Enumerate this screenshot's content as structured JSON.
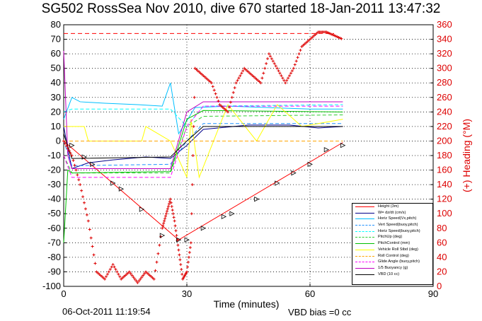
{
  "page": {
    "title": "SG502 RossSea Nov 2010, dive 670 started 18-Jan-2011 13:47:32",
    "date_stamp": "06-Oct-2011 11:19:54",
    "vbd_bias": "VBD bias =0 cc"
  },
  "chart_data": {
    "type": "line",
    "xlabel": "Time (minutes)",
    "ylabel_right": "(+) Heading (°M)",
    "xlim": [
      0,
      90
    ],
    "ylim_left": [
      -100,
      80
    ],
    "ylim_right": [
      0,
      360
    ],
    "x_ticks": [
      "0",
      "30",
      "60",
      "90"
    ],
    "y_ticks_left": [
      "80",
      "70",
      "60",
      "50",
      "40",
      "30",
      "20",
      "10",
      "0",
      "-10",
      "-20",
      "-30",
      "-40",
      "-50",
      "-60",
      "-70",
      "-80",
      "-90",
      "-100"
    ],
    "y_ticks_right": [
      "360",
      "340",
      "320",
      "300",
      "280",
      "260",
      "240",
      "220",
      "200",
      "180",
      "160",
      "140",
      "120",
      "100",
      "80",
      "60",
      "40",
      "20",
      "0"
    ],
    "grid": true,
    "legend_position": "bottom-right",
    "colors": {
      "height": "#ff0000",
      "w": "#00008b",
      "horz_speed": "#00bfff",
      "vert_speed_buoy": "#1e90ff",
      "horz_speed_buoy": "#00ffff",
      "pitch_up": "#32cd32",
      "pitch_control": "#00c000",
      "vehicle_roll": "#ffff00",
      "roll_control": "#ffa500",
      "glide_angle": "#ff00ff",
      "buoyancy": "#c000c0",
      "vbd": "#000000",
      "heading": "#dd0000"
    },
    "series": [
      {
        "name": "Height (3m)",
        "color": "#ff0000",
        "dash": "solid",
        "x": [
          0,
          28,
          68
        ],
        "y": [
          0,
          -68,
          -1
        ]
      },
      {
        "name": "W= dz/dt (cm/s)",
        "color": "#00008b",
        "dash": "solid",
        "x": [
          0,
          1,
          2,
          6,
          12,
          20,
          26,
          30,
          34,
          45,
          55,
          62,
          68
        ],
        "y": [
          10,
          -5,
          -19,
          -15,
          -13,
          -11,
          -12,
          -3,
          8,
          11,
          11,
          9,
          10
        ]
      },
      {
        "name": "Horiz Speed(Vx,pitch)",
        "color": "#00bfff",
        "dash": "solid",
        "x": [
          0,
          2,
          4,
          10,
          18,
          24,
          26,
          28,
          32,
          40,
          50,
          60,
          68
        ],
        "y": [
          15,
          30,
          27,
          26,
          25,
          24,
          40,
          5,
          23,
          24,
          23,
          22,
          22
        ]
      },
      {
        "name": "Vert Speed(buoy,pitch)",
        "color": "#1e90ff",
        "dash": "dashed",
        "x": [
          0,
          2,
          26,
          30,
          34,
          68
        ],
        "y": [
          0,
          -17,
          -16,
          0,
          12,
          12
        ]
      },
      {
        "name": "Horiz Speed(buoy,pitch)",
        "color": "#00ffff",
        "dash": "dashed",
        "x": [
          0,
          2,
          26,
          30,
          34,
          68
        ],
        "y": [
          20,
          22,
          22,
          10,
          24,
          25
        ]
      },
      {
        "name": "PitchUp (deg)",
        "color": "#32cd32",
        "dash": "dashed",
        "x": [
          0,
          2,
          26,
          30,
          34,
          68
        ],
        "y": [
          -10,
          -22,
          -22,
          10,
          17,
          18
        ]
      },
      {
        "name": "PitchControl (mm)",
        "color": "#00c000",
        "dash": "solid",
        "x": [
          0,
          1,
          2,
          26,
          30,
          34,
          68
        ],
        "y": [
          -70,
          -20,
          -22,
          -21,
          15,
          21,
          20
        ]
      },
      {
        "name": "Vehicle Roll Stbd (deg)",
        "color": "#ffff00",
        "dash": "solid",
        "x": [
          0,
          5,
          6,
          19,
          20,
          26,
          30,
          31,
          33,
          40,
          47,
          52,
          58,
          68
        ],
        "y": [
          10,
          10,
          0,
          0,
          10,
          0,
          -25,
          15,
          -25,
          25,
          0,
          25,
          10,
          15
        ]
      },
      {
        "name": "Roll Control (deg)",
        "color": "#ffa500",
        "dash": "dashed",
        "x": [
          0,
          2,
          26,
          30,
          68
        ],
        "y": [
          0,
          0,
          0,
          0,
          0
        ]
      },
      {
        "name": "Glide Angle (buoy,pitch)",
        "color": "#ff00ff",
        "dash": "dashed",
        "x": [
          0,
          2,
          26,
          30,
          34,
          68
        ],
        "y": [
          -10,
          -25,
          -25,
          10,
          24,
          24
        ]
      },
      {
        "name": "1/5 Buoyancy (g)",
        "color": "#c000c0",
        "dash": "solid",
        "x": [
          0,
          1,
          2,
          26,
          30,
          34,
          68
        ],
        "y": [
          62,
          -10,
          -19,
          -19,
          20,
          27,
          27
        ]
      },
      {
        "name": "VBD (10 cc)",
        "color": "#000000",
        "dash": "solid",
        "x": [
          0,
          2,
          26,
          30,
          34,
          68
        ],
        "y": [
          5,
          -12,
          -11,
          0,
          10,
          10
        ]
      }
    ],
    "heading_series": {
      "name": "(+) Heading (°M)",
      "color": "#dd0000",
      "x": [
        0,
        2,
        4,
        6,
        8,
        10,
        12,
        14,
        16,
        18,
        20,
        22,
        24,
        25,
        26,
        27,
        28,
        29,
        30,
        31,
        32,
        34,
        36,
        38,
        40,
        42,
        44,
        46,
        48,
        50,
        52,
        54,
        56,
        58,
        60,
        62,
        64,
        66,
        68
      ],
      "y": [
        200,
        180,
        140,
        90,
        20,
        10,
        30,
        10,
        20,
        5,
        20,
        10,
        80,
        100,
        120,
        90,
        50,
        10,
        20,
        60,
        300,
        290,
        280,
        250,
        240,
        280,
        300,
        290,
        280,
        320,
        300,
        280,
        300,
        330,
        340,
        350,
        350,
        345,
        340
      ]
    },
    "markers": {
      "name": "Height (3m) waypoints",
      "x": [
        2,
        5,
        7,
        12,
        14,
        19,
        24,
        28,
        30,
        34,
        39,
        41,
        47,
        52,
        56,
        60,
        64,
        68
      ],
      "y": [
        -3,
        -11,
        -16,
        -29,
        -33,
        -47,
        -65,
        -68,
        -68,
        -60,
        -52,
        -50,
        -40,
        -29,
        -22,
        -16,
        -6,
        -3
      ]
    },
    "legend": [
      "Height (3m)",
      "W= dz/dt (cm/s)",
      "Horiz Speed(Vx,pitch)",
      "Vert Speed(buoy,pitch)",
      "Horiz Speed(buoy,pitch)",
      "PitchUp (deg)",
      "PitchControl (mm)",
      "Vehicle Roll Stbd (deg)",
      "Roll Control (deg)",
      "Glide Angle (buoy,pitch)",
      "1/5 Buoyancy (g)",
      "VBD (10 cc)"
    ]
  }
}
